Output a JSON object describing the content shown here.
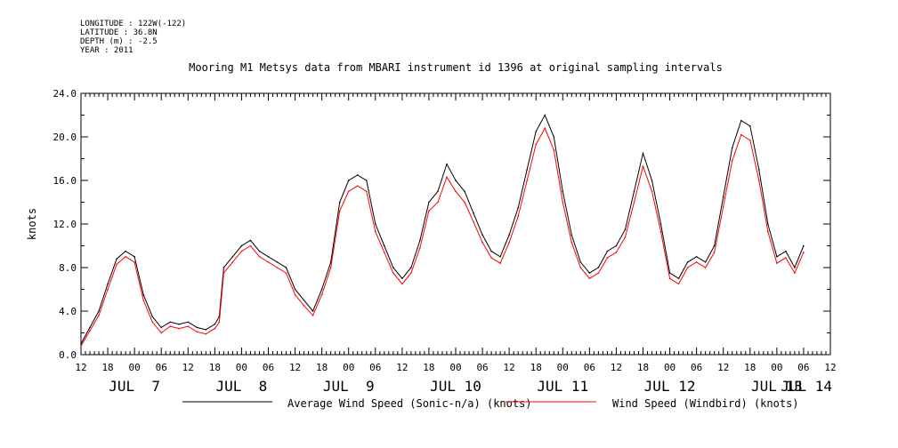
{
  "meta": {
    "longitude": "LONGITUDE : 122W(-122)",
    "latitude": "LATITUDE : 36.8N",
    "depth": "DEPTH (m) : -2.5",
    "year": "YEAR : 2011"
  },
  "chart_data": {
    "type": "line",
    "title": "Mooring M1 Metsys data from MBARI instrument id 1396 at original sampling intervals",
    "xlabel": "",
    "ylabel": "knots",
    "ylim": [
      0,
      24
    ],
    "y_ticks": [
      "0.0",
      "4.0",
      "8.0",
      "12.0",
      "16.0",
      "20.0",
      "24.0"
    ],
    "xlim_hours": [
      0,
      168
    ],
    "x_start": "2011-07-06 12:00",
    "x_tick_labels": [
      "12",
      "18",
      "00",
      "06",
      "12",
      "18",
      "00",
      "06",
      "12",
      "18",
      "00",
      "06",
      "12",
      "18",
      "00",
      "06",
      "12",
      "18",
      "00",
      "06",
      "12",
      "18",
      "00",
      "06",
      "12",
      "18",
      "00",
      "06",
      "12"
    ],
    "date_labels": [
      {
        "text": "JUL  7",
        "hour": 12
      },
      {
        "text": "JUL  8",
        "hour": 36
      },
      {
        "text": "JUL  9",
        "hour": 60
      },
      {
        "text": "JUL 10",
        "hour": 84
      },
      {
        "text": "JUL 11",
        "hour": 108
      },
      {
        "text": "JUL 12",
        "hour": 132
      },
      {
        "text": "JUL 13",
        "hour": 156
      },
      {
        "text": "JUL 14",
        "hour": 180
      }
    ],
    "grid": false,
    "legend_position": "bottom",
    "series": [
      {
        "name": "Average Wind Speed (Sonic-n/a) (knots)",
        "color": "#000000",
        "points": [
          [
            0,
            1.0
          ],
          [
            2,
            2.5
          ],
          [
            4,
            4.0
          ],
          [
            6,
            6.5
          ],
          [
            8,
            8.8
          ],
          [
            10,
            9.5
          ],
          [
            12,
            9.0
          ],
          [
            14,
            5.5
          ],
          [
            16,
            3.5
          ],
          [
            18,
            2.5
          ],
          [
            20,
            3.0
          ],
          [
            22,
            2.8
          ],
          [
            24,
            3.0
          ],
          [
            26,
            2.5
          ],
          [
            28,
            2.3
          ],
          [
            30,
            2.8
          ],
          [
            31,
            3.5
          ],
          [
            32,
            8.0
          ],
          [
            34,
            9.0
          ],
          [
            36,
            10.0
          ],
          [
            38,
            10.5
          ],
          [
            40,
            9.5
          ],
          [
            42,
            9.0
          ],
          [
            44,
            8.5
          ],
          [
            46,
            8.0
          ],
          [
            48,
            6.0
          ],
          [
            50,
            5.0
          ],
          [
            52,
            4.0
          ],
          [
            54,
            6.0
          ],
          [
            56,
            8.5
          ],
          [
            58,
            14.0
          ],
          [
            60,
            16.0
          ],
          [
            62,
            16.5
          ],
          [
            64,
            16.0
          ],
          [
            66,
            12.0
          ],
          [
            68,
            10.0
          ],
          [
            70,
            8.0
          ],
          [
            72,
            7.0
          ],
          [
            74,
            8.0
          ],
          [
            76,
            10.5
          ],
          [
            78,
            14.0
          ],
          [
            80,
            15.0
          ],
          [
            82,
            17.5
          ],
          [
            84,
            16.0
          ],
          [
            86,
            15.0
          ],
          [
            88,
            13.0
          ],
          [
            90,
            11.0
          ],
          [
            92,
            9.5
          ],
          [
            94,
            9.0
          ],
          [
            96,
            11.0
          ],
          [
            98,
            13.5
          ],
          [
            100,
            17.0
          ],
          [
            102,
            20.5
          ],
          [
            104,
            22.0
          ],
          [
            106,
            20.0
          ],
          [
            108,
            15.0
          ],
          [
            110,
            11.0
          ],
          [
            112,
            8.5
          ],
          [
            114,
            7.5
          ],
          [
            116,
            8.0
          ],
          [
            118,
            9.5
          ],
          [
            120,
            10.0
          ],
          [
            122,
            11.5
          ],
          [
            124,
            15.0
          ],
          [
            126,
            18.5
          ],
          [
            128,
            16.0
          ],
          [
            130,
            12.0
          ],
          [
            132,
            7.5
          ],
          [
            134,
            7.0
          ],
          [
            136,
            8.5
          ],
          [
            138,
            9.0
          ],
          [
            140,
            8.5
          ],
          [
            142,
            10.0
          ],
          [
            144,
            14.5
          ],
          [
            146,
            19.0
          ],
          [
            148,
            21.5
          ],
          [
            150,
            21.0
          ],
          [
            152,
            17.0
          ],
          [
            154,
            12.0
          ],
          [
            156,
            9.0
          ],
          [
            158,
            9.5
          ],
          [
            160,
            8.0
          ],
          [
            162,
            10.0
          ]
        ]
      },
      {
        "name": "Wind Speed (Windbird) (knots)",
        "color": "#ff0000",
        "points": [
          [
            0,
            0.8
          ],
          [
            2,
            2.2
          ],
          [
            4,
            3.6
          ],
          [
            6,
            6.0
          ],
          [
            8,
            8.3
          ],
          [
            10,
            9.0
          ],
          [
            12,
            8.5
          ],
          [
            14,
            5.0
          ],
          [
            16,
            3.0
          ],
          [
            18,
            2.0
          ],
          [
            20,
            2.6
          ],
          [
            22,
            2.4
          ],
          [
            24,
            2.6
          ],
          [
            26,
            2.1
          ],
          [
            28,
            1.9
          ],
          [
            30,
            2.4
          ],
          [
            31,
            3.0
          ],
          [
            32,
            7.5
          ],
          [
            34,
            8.5
          ],
          [
            36,
            9.5
          ],
          [
            38,
            10.0
          ],
          [
            40,
            9.0
          ],
          [
            42,
            8.5
          ],
          [
            44,
            8.0
          ],
          [
            46,
            7.5
          ],
          [
            48,
            5.5
          ],
          [
            50,
            4.5
          ],
          [
            52,
            3.6
          ],
          [
            54,
            5.5
          ],
          [
            56,
            8.0
          ],
          [
            58,
            13.2
          ],
          [
            60,
            15.0
          ],
          [
            62,
            15.5
          ],
          [
            64,
            15.0
          ],
          [
            66,
            11.3
          ],
          [
            68,
            9.4
          ],
          [
            70,
            7.5
          ],
          [
            72,
            6.5
          ],
          [
            74,
            7.5
          ],
          [
            76,
            9.8
          ],
          [
            78,
            13.2
          ],
          [
            80,
            14.0
          ],
          [
            82,
            16.3
          ],
          [
            84,
            15.0
          ],
          [
            86,
            14.0
          ],
          [
            88,
            12.2
          ],
          [
            90,
            10.3
          ],
          [
            92,
            8.9
          ],
          [
            94,
            8.4
          ],
          [
            96,
            10.3
          ],
          [
            98,
            12.7
          ],
          [
            100,
            16.0
          ],
          [
            102,
            19.3
          ],
          [
            104,
            20.8
          ],
          [
            106,
            18.8
          ],
          [
            108,
            14.0
          ],
          [
            110,
            10.3
          ],
          [
            112,
            8.0
          ],
          [
            114,
            7.0
          ],
          [
            116,
            7.5
          ],
          [
            118,
            8.9
          ],
          [
            120,
            9.4
          ],
          [
            122,
            10.8
          ],
          [
            124,
            14.0
          ],
          [
            126,
            17.3
          ],
          [
            128,
            15.0
          ],
          [
            130,
            11.3
          ],
          [
            132,
            7.0
          ],
          [
            134,
            6.5
          ],
          [
            136,
            8.0
          ],
          [
            138,
            8.5
          ],
          [
            140,
            8.0
          ],
          [
            142,
            9.4
          ],
          [
            144,
            13.6
          ],
          [
            146,
            17.8
          ],
          [
            148,
            20.2
          ],
          [
            150,
            19.7
          ],
          [
            152,
            16.0
          ],
          [
            154,
            11.3
          ],
          [
            156,
            8.4
          ],
          [
            158,
            8.9
          ],
          [
            160,
            7.5
          ],
          [
            162,
            9.4
          ]
        ]
      }
    ]
  }
}
